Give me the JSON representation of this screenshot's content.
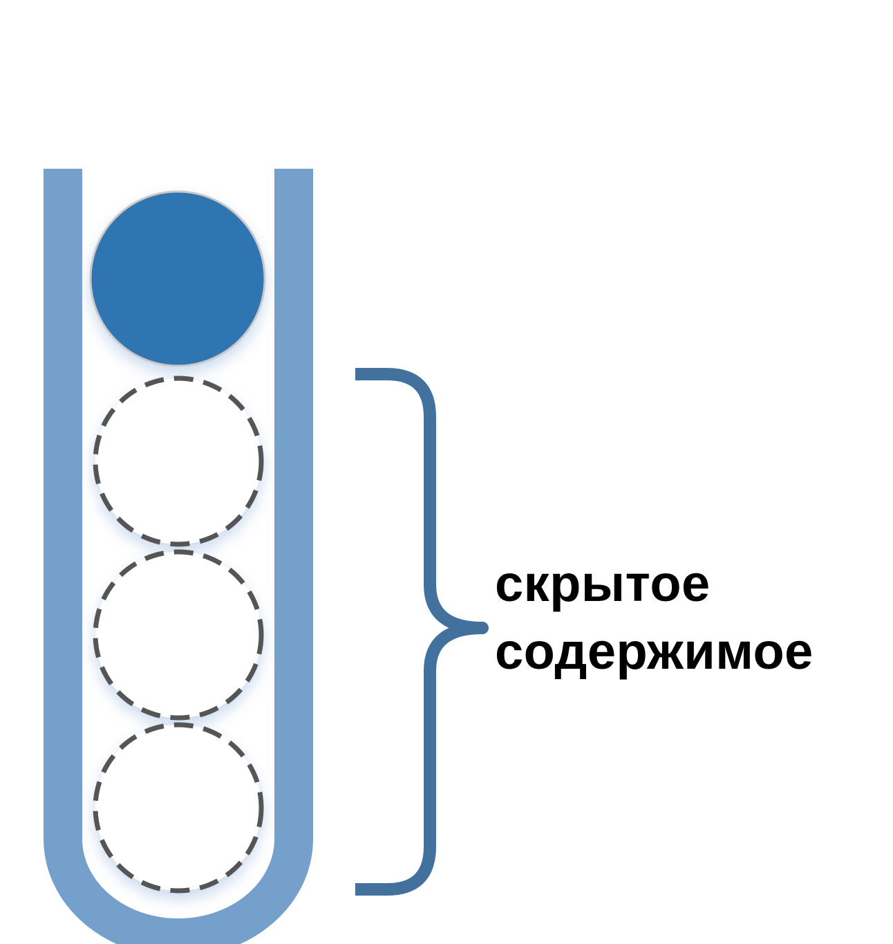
{
  "label": {
    "line1": "скрытое",
    "line2": "содержимое"
  },
  "tube": {
    "total_slots": 4,
    "visible_slots": 1,
    "hidden_slots": 3
  },
  "colors": {
    "tube": "#75a0cc",
    "visible_ball": "#2f74b2",
    "hidden_ball_stroke": "#555555",
    "brace": "#43719e",
    "text": "#000000",
    "shadow": "#b9cde8"
  }
}
